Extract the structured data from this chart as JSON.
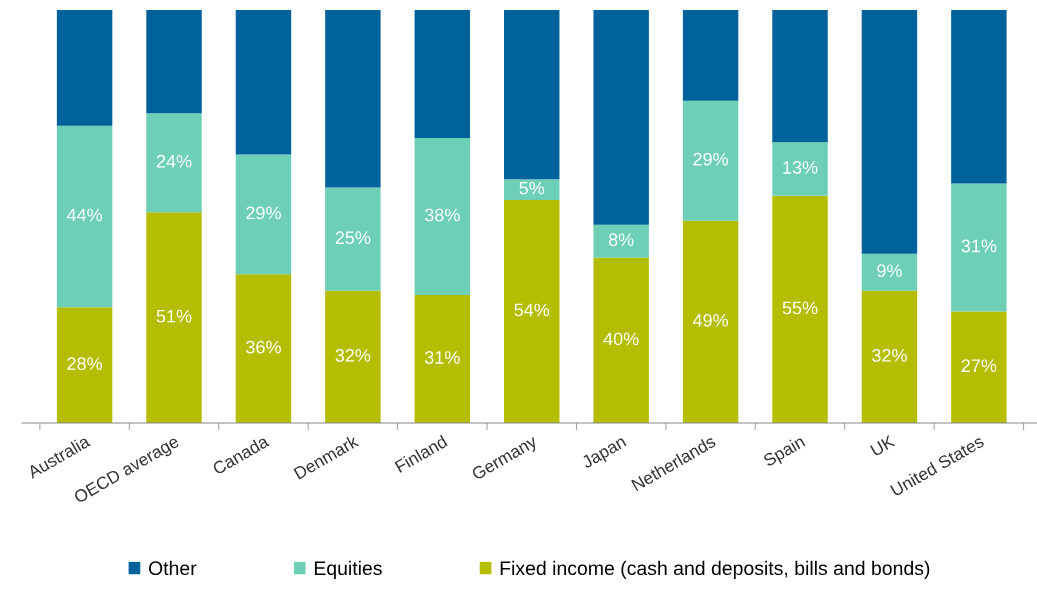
{
  "chart_data": {
    "type": "bar",
    "stacked": true,
    "ylim": [
      0,
      100
    ],
    "tick_labels": "x",
    "legend": "bottom",
    "grid": false,
    "categories": [
      "Australia",
      "OECD average",
      "Canada",
      "Denmark",
      "Finland",
      "Germany",
      "Japan",
      "Netherlands",
      "Spain",
      "UK",
      "United States"
    ],
    "series": [
      {
        "name": "Fixed income (cash and deposits, bills and bonds)",
        "color": "#b5bd00",
        "values": [
          28,
          51,
          36,
          32,
          31,
          54,
          40,
          49,
          55,
          32,
          27
        ],
        "value_labels": [
          "28%",
          "51%",
          "36%",
          "32%",
          "31%",
          "54%",
          "40%",
          "49%",
          "55%",
          "32%",
          "27%"
        ]
      },
      {
        "name": "Equities",
        "color": "#6dcfb6",
        "values": [
          44,
          24,
          29,
          25,
          38,
          5,
          8,
          29,
          13,
          9,
          31
        ],
        "value_labels": [
          "44%",
          "24%",
          "29%",
          "25%",
          "38%",
          "5%",
          "8%",
          "29%",
          "13%",
          "9%",
          "31%"
        ]
      },
      {
        "name": "Other",
        "color": "#00629b",
        "values": [
          28,
          25,
          35,
          43,
          31,
          41,
          52,
          22,
          32,
          59,
          42
        ]
      }
    ]
  }
}
